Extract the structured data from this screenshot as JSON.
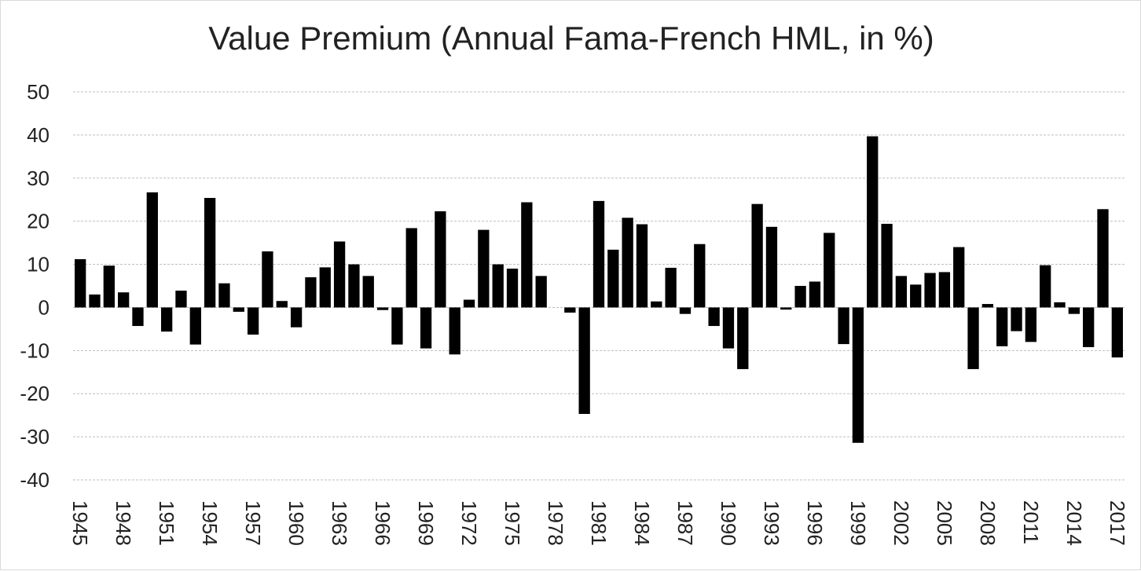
{
  "chart_data": {
    "type": "bar",
    "title": "Value Premium (Annual Fama-French HML, in %)",
    "xlabel": "",
    "ylabel": "",
    "ylim": [
      -40,
      50
    ],
    "yticks": [
      50,
      40,
      30,
      20,
      10,
      0,
      -10,
      -20,
      -30,
      -40
    ],
    "grid": true,
    "bar_color": "#000000",
    "categories": [
      "1945",
      "1946",
      "1947",
      "1948",
      "1949",
      "1950",
      "1951",
      "1952",
      "1953",
      "1954",
      "1955",
      "1956",
      "1957",
      "1958",
      "1959",
      "1960",
      "1961",
      "1962",
      "1963",
      "1964",
      "1965",
      "1966",
      "1967",
      "1968",
      "1969",
      "1970",
      "1971",
      "1972",
      "1973",
      "1974",
      "1975",
      "1976",
      "1977",
      "1978",
      "1979",
      "1980",
      "1981",
      "1982",
      "1983",
      "1984",
      "1985",
      "1986",
      "1987",
      "1988",
      "1989",
      "1990",
      "1991",
      "1992",
      "1993",
      "1994",
      "1995",
      "1996",
      "1997",
      "1998",
      "1999",
      "2000",
      "2001",
      "2002",
      "2003",
      "2004",
      "2005",
      "2006",
      "2007",
      "2008",
      "2009",
      "2010",
      "2011",
      "2012",
      "2013",
      "2014",
      "2015",
      "2016",
      "2017"
    ],
    "tick_labels": [
      "1945",
      "1948",
      "1951",
      "1954",
      "1957",
      "1960",
      "1963",
      "1966",
      "1969",
      "1972",
      "1975",
      "1978",
      "1981",
      "1984",
      "1987",
      "1990",
      "1993",
      "1996",
      "1999",
      "2002",
      "2005",
      "2008",
      "2011",
      "2014",
      "2017"
    ],
    "values": [
      11.2,
      3.0,
      9.7,
      3.5,
      -4.3,
      26.7,
      -5.6,
      3.9,
      -8.6,
      25.4,
      5.6,
      -1.0,
      -6.3,
      13.0,
      1.5,
      -4.6,
      7.0,
      9.3,
      15.3,
      10.0,
      7.3,
      -0.6,
      -8.6,
      18.4,
      -9.5,
      22.3,
      -10.9,
      1.8,
      18.0,
      10.0,
      9.0,
      24.4,
      7.3,
      0.0,
      -1.2,
      -24.7,
      24.7,
      13.4,
      20.8,
      19.3,
      1.4,
      9.2,
      -1.5,
      14.7,
      -4.3,
      -9.5,
      -14.3,
      24.0,
      18.7,
      -0.5,
      5.0,
      6.0,
      17.3,
      -8.5,
      -31.4,
      39.7,
      19.4,
      7.3,
      5.3,
      8.0,
      8.2,
      14.0,
      -14.3,
      0.8,
      -9.0,
      -5.5,
      -8.0,
      9.8,
      1.2,
      -1.5,
      -9.2,
      22.8,
      -11.6
    ]
  }
}
